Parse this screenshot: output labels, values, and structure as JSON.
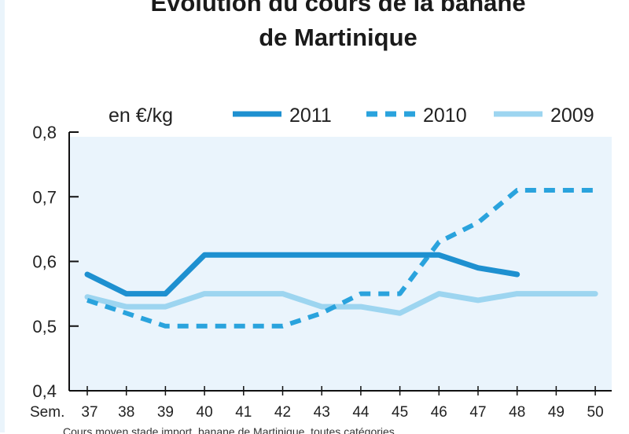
{
  "chart_data": {
    "type": "line",
    "title": "Evolution du cours de la banane",
    "title_line2": "de Martinique",
    "unit_label": "en €/kg",
    "x_prefix": "Sem.",
    "x": [
      "37",
      "38",
      "39",
      "40",
      "41",
      "42",
      "43",
      "44",
      "45",
      "46",
      "47",
      "48",
      "49",
      "50"
    ],
    "yticks": [
      "0,4",
      "0,5",
      "0,6",
      "0,7",
      "0,8"
    ],
    "ylim": [
      0.4,
      0.8
    ],
    "grid": false,
    "legend_position": "top",
    "series": [
      {
        "name": "2011",
        "style": "solid",
        "color": "#1e90d0",
        "values": [
          0.58,
          0.55,
          0.55,
          0.61,
          0.61,
          0.61,
          0.61,
          0.61,
          0.61,
          0.61,
          0.59,
          0.58,
          null,
          null
        ]
      },
      {
        "name": "2010",
        "style": "dashed",
        "color": "#2aa3dd",
        "values": [
          0.54,
          0.52,
          0.5,
          0.5,
          0.5,
          0.5,
          0.52,
          0.55,
          0.55,
          0.63,
          0.66,
          0.71,
          0.71,
          0.71
        ]
      },
      {
        "name": "2009",
        "style": "solid",
        "color": "#9dd5f0",
        "values": [
          0.545,
          0.53,
          0.53,
          0.55,
          0.55,
          0.55,
          0.53,
          0.53,
          0.52,
          0.55,
          0.54,
          0.55,
          0.55,
          0.55
        ]
      }
    ],
    "footnote": "Cours moyen stade import, banane de Martinique, toutes catégories"
  }
}
